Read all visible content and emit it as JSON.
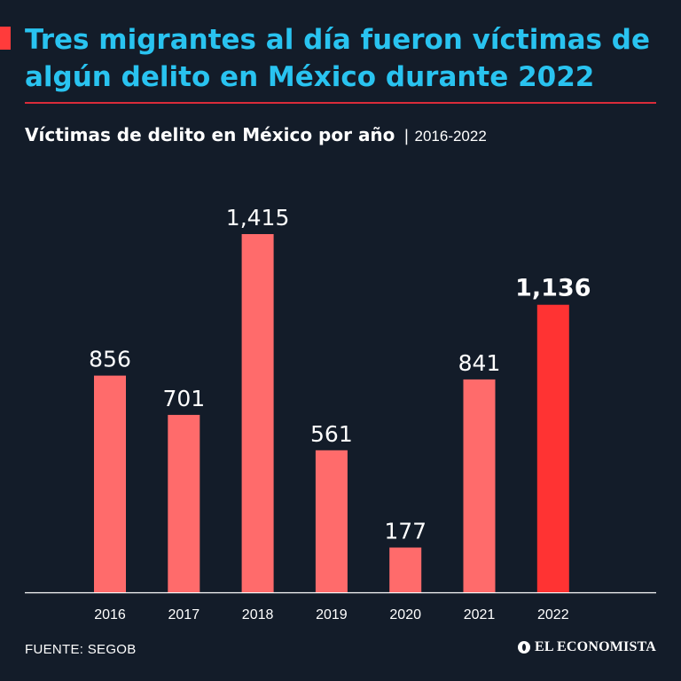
{
  "header": {
    "headline": "Tres migrantes al día fueron víctimas de algún delito en México durante 2022",
    "subtitle": "Víctimas de delito en México por año",
    "separator": "|",
    "range": "2016-2022"
  },
  "footer": {
    "source": "FUENTE: SEGOB",
    "brand": "EL ECONOMISTA"
  },
  "colors": {
    "background": "#131c29",
    "headline": "#29c3f0",
    "bar": "#ff6b6b",
    "bar_highlight": "#ff3333",
    "rule": "#d92c3a"
  },
  "chart_data": {
    "type": "bar",
    "title": "Víctimas de delito en México por año",
    "xlabel": "",
    "ylabel": "",
    "categories": [
      "2016",
      "2017",
      "2018",
      "2019",
      "2020",
      "2021",
      "2022"
    ],
    "values": [
      856,
      701,
      1415,
      561,
      177,
      841,
      1136
    ],
    "value_labels": [
      "856",
      "701",
      "1,415",
      "561",
      "177",
      "841",
      "1,136"
    ],
    "highlight_index": 6,
    "ylim": [
      0,
      1415
    ],
    "grid": false
  }
}
